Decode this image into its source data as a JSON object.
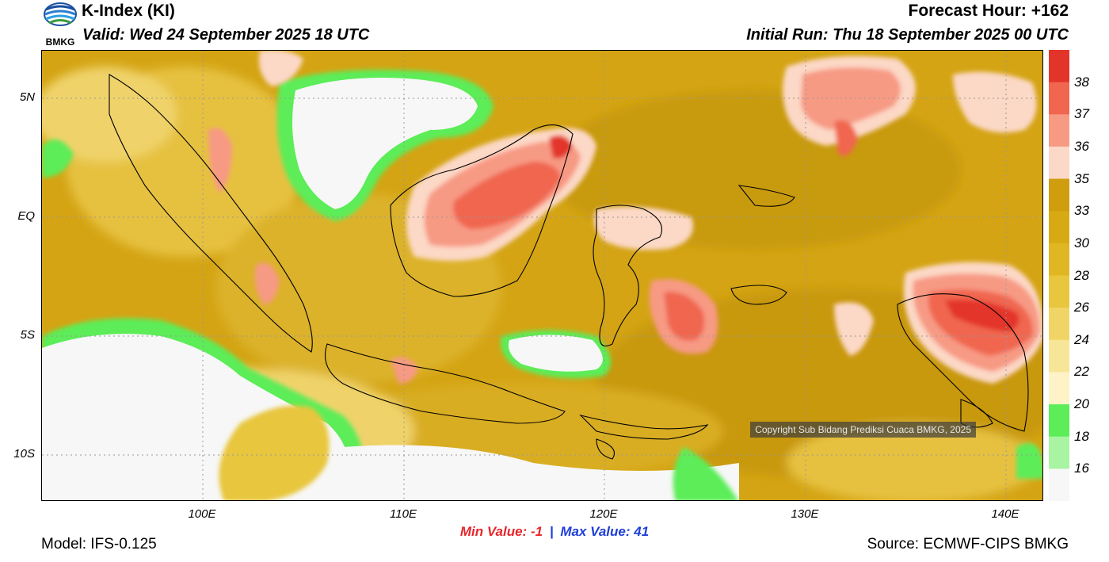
{
  "header": {
    "title": "K-Index (KI)",
    "valid": "Valid: Wed 24 September 2025 18 UTC",
    "forecast_hour": "Forecast Hour: +162",
    "initial_run": "Initial Run: Thu 18 September 2025 00 UTC",
    "logo_text": "BMKG"
  },
  "map": {
    "lat_labels": [
      "5N",
      "EQ",
      "5S",
      "10S"
    ],
    "lon_labels": [
      "100E",
      "110E",
      "120E",
      "130E",
      "140E"
    ],
    "copyright": "Copyright Sub Bidang Prediksi Cuaca BMKG, 2025"
  },
  "colorbar": {
    "labels": [
      "38",
      "37",
      "36",
      "35",
      "33",
      "30",
      "28",
      "26",
      "24",
      "22",
      "20",
      "18",
      "16"
    ],
    "colors": [
      "#e3342a",
      "#f0664f",
      "#f79a84",
      "#fcd8c6",
      "#cf9d0e",
      "#d7aa14",
      "#e0b722",
      "#e8c63d",
      "#f0d566",
      "#f7e598",
      "#fdf3c6",
      "#5ced59",
      "#a8f4a2",
      "#f7f7f7"
    ]
  },
  "stats": {
    "min_label": "Min Value:",
    "min_value": "-1",
    "max_label": "Max Value:",
    "max_value": "41",
    "separator": "|"
  },
  "footer": {
    "model": "Model: IFS-0.125",
    "source": "Source: ECMWF-CIPS BMKG"
  }
}
